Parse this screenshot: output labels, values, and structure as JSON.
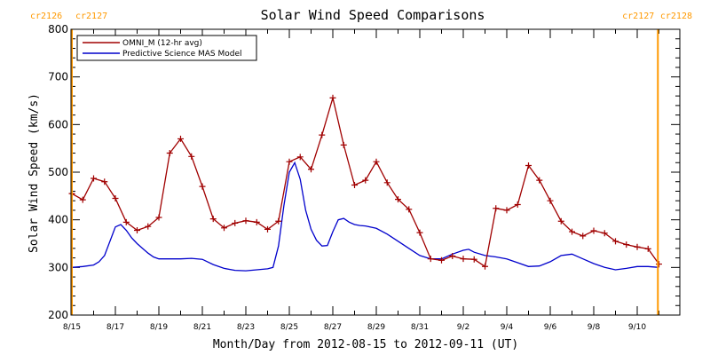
{
  "chart_data": {
    "type": "line",
    "title": "Solar Wind Speed Comparisons",
    "xlabel": "Month/Day from 2012-08-15 to 2012-09-11 (UT)",
    "ylabel": "Solar Wind Speed (km/s)",
    "ylim": [
      200,
      800
    ],
    "y_ticks": [
      200,
      300,
      400,
      500,
      600,
      700,
      800
    ],
    "x_ticks": [
      {
        "day": 0,
        "label": "8/15"
      },
      {
        "day": 2,
        "label": "8/17"
      },
      {
        "day": 4,
        "label": "8/19"
      },
      {
        "day": 6,
        "label": "8/21"
      },
      {
        "day": 8,
        "label": "8/23"
      },
      {
        "day": 10,
        "label": "8/25"
      },
      {
        "day": 12,
        "label": "8/27"
      },
      {
        "day": 14,
        "label": "8/29"
      },
      {
        "day": 16,
        "label": "8/31"
      },
      {
        "day": 18,
        "label": "9/2"
      },
      {
        "day": 20,
        "label": "9/4"
      },
      {
        "day": 22,
        "label": "9/6"
      },
      {
        "day": 24,
        "label": "9/8"
      },
      {
        "day": 26,
        "label": "9/10"
      }
    ],
    "rotation_markers": [
      {
        "day": 0.0,
        "left_label": "cr2126",
        "right_label": "cr2127"
      },
      {
        "day": 26.95,
        "left_label": "cr2127",
        "right_label": "cr2128"
      }
    ],
    "colors": {
      "omni": "#a00000",
      "mas": "#0000cc",
      "rotation": "#ff9900"
    },
    "legend": {
      "position": "top-left"
    },
    "series": [
      {
        "name": "OMNI_M (12-hr avg)",
        "key": "omni",
        "x": [
          0.0,
          0.5,
          1.0,
          1.5,
          2.0,
          2.5,
          3.0,
          3.5,
          4.0,
          4.5,
          5.0,
          5.5,
          6.0,
          6.5,
          7.0,
          7.5,
          8.0,
          8.5,
          9.0,
          9.5,
          10.0,
          10.5,
          11.0,
          11.5,
          12.0,
          12.5,
          13.0,
          13.5,
          14.0,
          14.5,
          15.0,
          15.5,
          16.0,
          16.5,
          17.0,
          17.5,
          18.0,
          18.5,
          19.0,
          19.5,
          20.0,
          20.5,
          21.0,
          21.5,
          22.0,
          22.5,
          23.0,
          23.5,
          24.0,
          24.5,
          25.0,
          25.5,
          26.0,
          26.5,
          27.0
        ],
        "y": [
          455,
          442,
          487,
          480,
          445,
          395,
          378,
          386,
          405,
          540,
          570,
          533,
          470,
          402,
          383,
          393,
          398,
          395,
          380,
          397,
          522,
          532,
          506,
          578,
          656,
          557,
          473,
          483,
          522,
          478,
          443,
          422,
          373,
          318,
          315,
          324,
          318,
          317,
          302,
          424,
          420,
          432,
          514,
          483,
          440,
          397,
          375,
          366,
          377,
          372,
          355,
          348,
          343,
          339,
          307
        ]
      },
      {
        "name": "Predictive Science MAS Model",
        "key": "mas",
        "x": [
          0.0,
          0.5,
          1.0,
          1.25,
          1.5,
          1.75,
          2.0,
          2.25,
          2.5,
          2.75,
          3.0,
          3.25,
          3.5,
          3.75,
          4.0,
          4.5,
          5.0,
          5.5,
          6.0,
          6.5,
          7.0,
          7.5,
          8.0,
          8.5,
          9.0,
          9.25,
          9.5,
          9.75,
          10.0,
          10.25,
          10.5,
          10.75,
          11.0,
          11.25,
          11.5,
          11.75,
          12.0,
          12.25,
          12.5,
          12.75,
          13.0,
          13.25,
          13.5,
          14.0,
          14.5,
          15.0,
          15.5,
          16.0,
          16.5,
          17.0,
          17.5,
          18.0,
          18.25,
          18.5,
          19.0,
          19.5,
          20.0,
          20.5,
          21.0,
          21.5,
          22.0,
          22.5,
          23.0,
          23.5,
          24.0,
          24.5,
          25.0,
          25.5,
          26.0,
          26.5,
          27.0
        ],
        "y": [
          300,
          302,
          305,
          312,
          325,
          355,
          385,
          390,
          378,
          362,
          350,
          340,
          330,
          322,
          318,
          318,
          318,
          319,
          317,
          306,
          298,
          294,
          293,
          295,
          297,
          300,
          345,
          430,
          500,
          520,
          485,
          420,
          380,
          357,
          345,
          346,
          375,
          400,
          403,
          395,
          390,
          388,
          387,
          382,
          370,
          355,
          340,
          325,
          318,
          318,
          328,
          336,
          338,
          332,
          325,
          322,
          318,
          310,
          302,
          303,
          312,
          325,
          328,
          318,
          308,
          300,
          295,
          298,
          302,
          302,
          300
        ]
      }
    ]
  }
}
